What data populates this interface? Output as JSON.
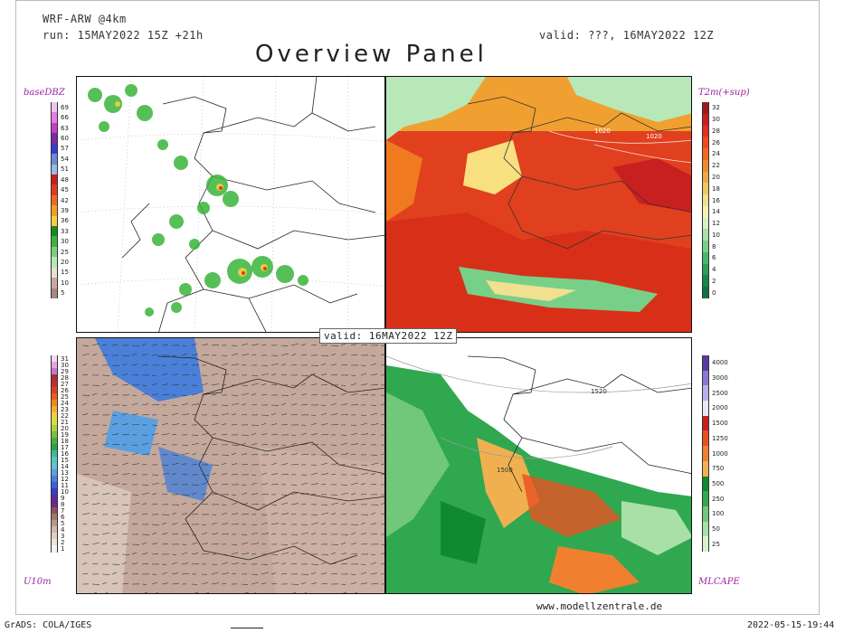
{
  "header": {
    "model": "WRF-ARW @4km",
    "run": "run: 15MAY2022 15Z +21h",
    "valid_top": "valid: ???, 16MAY2022 12Z",
    "title": "Overview Panel",
    "valid_center": "valid: 16MAY2022 12Z"
  },
  "panels": {
    "top_left": {
      "label": "baseDBZ"
    },
    "top_right": {
      "label": "T2m(+sup)",
      "isobar_labels": [
        "1020",
        "1020"
      ]
    },
    "bottom_left": {
      "label": "U10m"
    },
    "bottom_right": {
      "label": "MLCAPE",
      "isobar_labels": [
        "1520",
        "1500"
      ]
    }
  },
  "colorbars": {
    "dbz": {
      "ticks": [
        "69",
        "66",
        "63",
        "60",
        "57",
        "54",
        "51",
        "48",
        "45",
        "42",
        "39",
        "36",
        "33",
        "30",
        "25",
        "20",
        "15",
        "10",
        "5"
      ],
      "colors": [
        "#f2c3f2",
        "#e37de3",
        "#c83cc8",
        "#7a2aa5",
        "#3a3ad0",
        "#6a8ad8",
        "#9ab8e8",
        "#c81e1e",
        "#e03a1e",
        "#f06a1e",
        "#f0a028",
        "#f0d040",
        "#1a8a1a",
        "#3ab43a",
        "#7ad07a",
        "#b8e8b8",
        "#e8e0d8",
        "#c8a8a0",
        "#a88880"
      ]
    },
    "t2m": {
      "ticks": [
        "32",
        "30",
        "28",
        "26",
        "24",
        "22",
        "20",
        "18",
        "16",
        "14",
        "12",
        "10",
        "8",
        "6",
        "4",
        "2",
        "0"
      ],
      "colors": [
        "#a01818",
        "#c82020",
        "#e03020",
        "#f04a20",
        "#f06a20",
        "#f08a30",
        "#f0a840",
        "#f0c860",
        "#f0e090",
        "#f8f0b0",
        "#d8f0c0",
        "#a8e0a8",
        "#78d088",
        "#48b868",
        "#28a058",
        "#188848",
        "#107040"
      ]
    },
    "u10m": {
      "ticks": [
        "31",
        "30",
        "29",
        "28",
        "27",
        "26",
        "25",
        "24",
        "23",
        "22",
        "21",
        "20",
        "19",
        "18",
        "17",
        "16",
        "15",
        "14",
        "13",
        "12",
        "11",
        "10",
        "9",
        "8",
        "7",
        "6",
        "5",
        "4",
        "3",
        "2",
        "1"
      ],
      "colors": [
        "#f0d8f0",
        "#e0a8e0",
        "#c878c8",
        "#a83030",
        "#c03030",
        "#d84020",
        "#e86020",
        "#f08820",
        "#f0b030",
        "#f0d040",
        "#d8e040",
        "#a8d040",
        "#78c040",
        "#48b040",
        "#30a040",
        "#40b898",
        "#50c8c0",
        "#60c0e0",
        "#5aa0e0",
        "#4a80e0",
        "#3a60e0",
        "#3a40c0",
        "#5a2aa0",
        "#702888",
        "#8a5068",
        "#a07868",
        "#b89888",
        "#d0b8a8",
        "#e0d0c0",
        "#ece4dc",
        "#f6f2ee"
      ]
    },
    "cape": {
      "ticks": [
        "4000",
        "3000",
        "2500",
        "2000",
        "1500",
        "1250",
        "1000",
        "750",
        "500",
        "250",
        "100",
        "50",
        "25"
      ],
      "colors": [
        "#5a3aa0",
        "#8a78d0",
        "#b8b0e8",
        "#e8e8f8",
        "#c82020",
        "#e85020",
        "#f08030",
        "#f0b050",
        "#108a30",
        "#30a850",
        "#70c878",
        "#a8e0a8",
        "#d8f0d0"
      ]
    }
  },
  "footer": {
    "website": "www.modellzentrale.de",
    "grads": "GrADS: COLA/IGES",
    "timestamp": "2022-05-15-19:44"
  }
}
